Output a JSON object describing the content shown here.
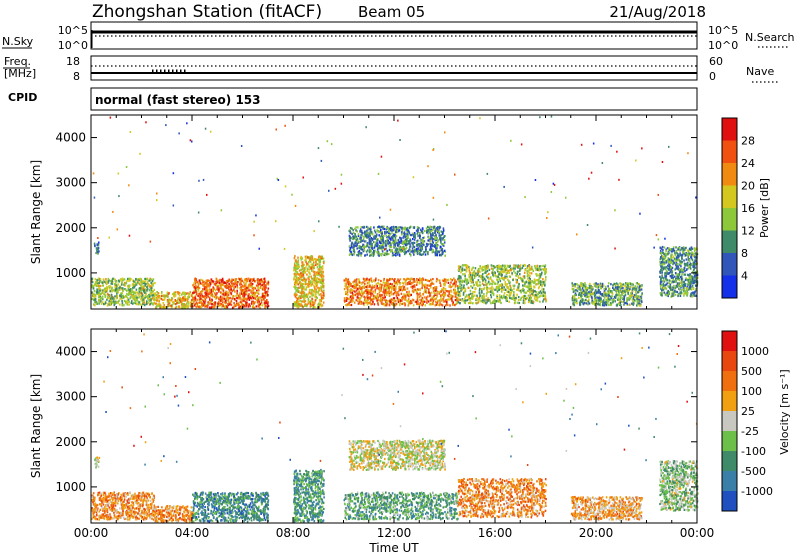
{
  "header": {
    "title": "Zhongshan Station (fitACF)",
    "beam": "Beam 05",
    "date": "21/Aug/2018"
  },
  "summary": {
    "nsky_label": "N.Sky",
    "nsky_ticks": [
      "10^5",
      "10^0"
    ],
    "nsearch_label": "N.Search",
    "right_ticks": [
      "10^5",
      "10^0"
    ],
    "freq_label": [
      "Freq.",
      "[MHz]"
    ],
    "freq_ticks": [
      "18",
      "8"
    ],
    "nave_label": "Nave",
    "nave_ticks": [
      "60",
      "0"
    ],
    "cpid_label": "CPID",
    "mode": "normal (fast stereo) 153"
  },
  "axes": {
    "xlabel": "Time UT",
    "ylabel": "Slant Range [km]",
    "xticks": [
      "00:00",
      "04:00",
      "08:00",
      "12:00",
      "16:00",
      "20:00",
      "00:00"
    ],
    "yticks": [
      "1000",
      "2000",
      "3000",
      "4000"
    ]
  },
  "colorbars": {
    "power": {
      "label": "Power [dB]",
      "colors": [
        "#1430e8",
        "#2f56b8",
        "#3f8a68",
        "#8cc83a",
        "#d4c820",
        "#f08a10",
        "#f05010",
        "#e01010"
      ],
      "ticks": [
        "4",
        "8",
        "12",
        "16",
        "20",
        "24",
        "28"
      ]
    },
    "velocity": {
      "label": "Velocity [m s⁻¹]",
      "colors": [
        "#2050c0",
        "#3a7fa8",
        "#3f8a68",
        "#6cc04a",
        "#c8c8c0",
        "#f0a010",
        "#f07010",
        "#e84810",
        "#e01010"
      ],
      "ticks": [
        "1000",
        "500",
        "100",
        "25",
        "-25",
        "-100",
        "-500",
        "-1000"
      ]
    }
  },
  "chart_data": [
    {
      "type": "heatmap",
      "title": "Power",
      "xlabel": "Time UT",
      "ylabel": "Slant Range [km]",
      "xlim": [
        "00:00",
        "24:00"
      ],
      "ylim": [
        200,
        4500
      ],
      "clim": [
        0,
        32
      ],
      "colorbar_label": "Power [dB]",
      "regions": [
        {
          "t0": 0.0,
          "t1": 2.5,
          "r0": 300,
          "r1": 900,
          "level": 0.45
        },
        {
          "t0": 0.1,
          "t1": 0.3,
          "r0": 1450,
          "r1": 1700,
          "level": 0.2
        },
        {
          "t0": 2.5,
          "t1": 4.0,
          "r0": 250,
          "r1": 600,
          "level": 0.6
        },
        {
          "t0": 4.0,
          "t1": 7.0,
          "r0": 250,
          "r1": 900,
          "level": 0.8
        },
        {
          "t0": 8.0,
          "t1": 9.2,
          "r0": 250,
          "r1": 1400,
          "level": 0.6
        },
        {
          "t0": 10.0,
          "t1": 14.5,
          "r0": 300,
          "r1": 900,
          "level": 0.75
        },
        {
          "t0": 10.2,
          "t1": 14.0,
          "r0": 1400,
          "r1": 2050,
          "level": 0.25
        },
        {
          "t0": 14.5,
          "t1": 18.0,
          "r0": 350,
          "r1": 1200,
          "level": 0.45
        },
        {
          "t0": 19.0,
          "t1": 21.8,
          "r0": 300,
          "r1": 800,
          "level": 0.35
        },
        {
          "t0": 22.5,
          "t1": 24.0,
          "r0": 500,
          "r1": 1600,
          "level": 0.3
        }
      ]
    },
    {
      "type": "heatmap",
      "title": "Velocity",
      "xlabel": "Time UT",
      "ylabel": "Slant Range [km]",
      "xlim": [
        "00:00",
        "24:00"
      ],
      "ylim": [
        200,
        4500
      ],
      "clim": [
        -1000,
        1000
      ],
      "colorbar_label": "Velocity [m s⁻¹]",
      "regions": [
        {
          "t0": 0.0,
          "t1": 2.5,
          "r0": 300,
          "r1": 900,
          "level": 0.7
        },
        {
          "t0": 0.1,
          "t1": 0.3,
          "r0": 1450,
          "r1": 1700,
          "level": 0.5
        },
        {
          "t0": 2.5,
          "t1": 4.0,
          "r0": 250,
          "r1": 600,
          "level": 0.7
        },
        {
          "t0": 4.0,
          "t1": 7.0,
          "r0": 250,
          "r1": 900,
          "level": 0.2
        },
        {
          "t0": 8.0,
          "t1": 9.2,
          "r0": 250,
          "r1": 1400,
          "level": 0.25
        },
        {
          "t0": 10.0,
          "t1": 14.5,
          "r0": 300,
          "r1": 900,
          "level": 0.3
        },
        {
          "t0": 10.2,
          "t1": 14.0,
          "r0": 1400,
          "r1": 2050,
          "level": 0.5
        },
        {
          "t0": 14.5,
          "t1": 18.0,
          "r0": 350,
          "r1": 1200,
          "level": 0.7
        },
        {
          "t0": 19.0,
          "t1": 21.8,
          "r0": 300,
          "r1": 800,
          "level": 0.65
        },
        {
          "t0": 22.5,
          "t1": 24.0,
          "r0": 500,
          "r1": 1600,
          "level": 0.4
        }
      ]
    }
  ]
}
